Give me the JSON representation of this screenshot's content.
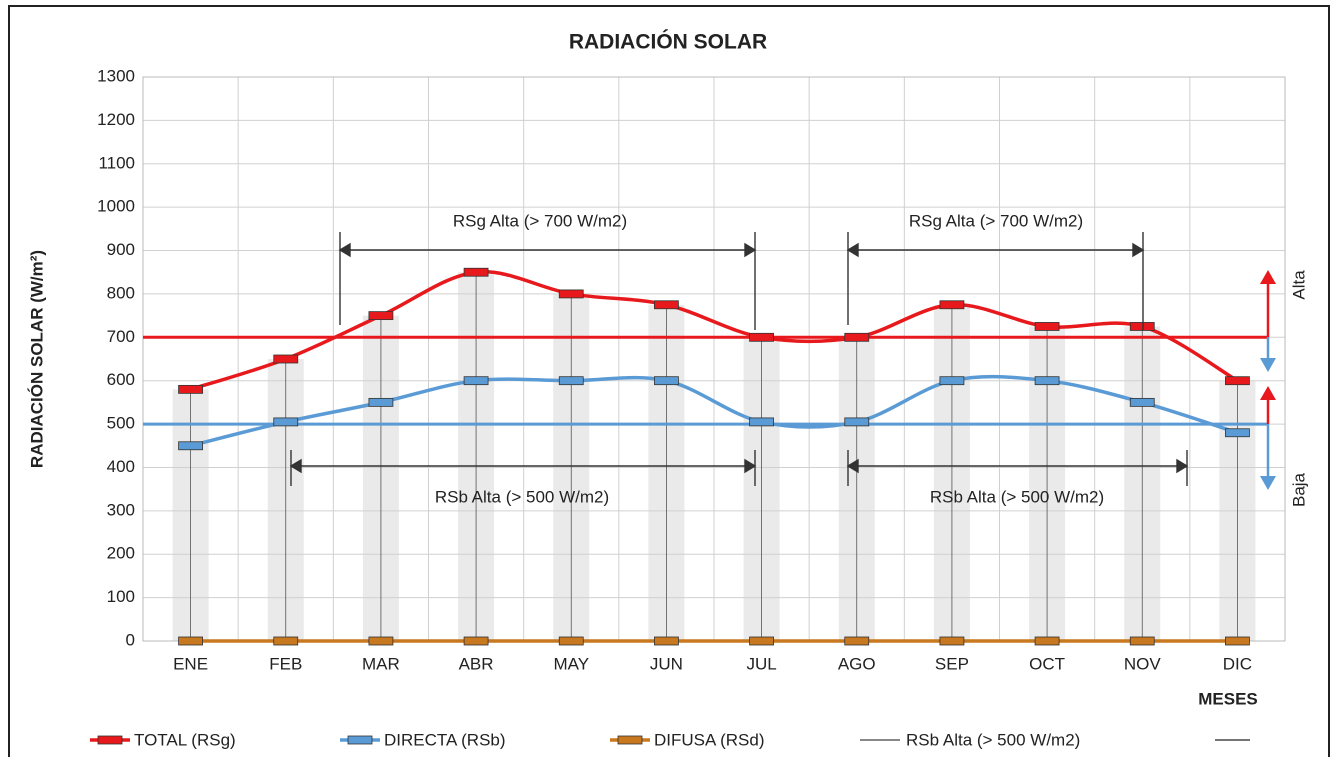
{
  "chart_data": {
    "type": "line",
    "title": "RADIACIÓN SOLAR",
    "y_label": "RADIACIÓN  SOLAR  (W/m²)",
    "x_label": "MESES",
    "categories": [
      "ENE",
      "FEB",
      "MAR",
      "ABR",
      "MAY",
      "JUN",
      "JUL",
      "AGO",
      "SEP",
      "OCT",
      "NOV",
      "DIC"
    ],
    "series": [
      {
        "name": "TOTAL (RSg)",
        "color": "#e8191c",
        "values": [
          580,
          650,
          750,
          850,
          800,
          775,
          700,
          700,
          775,
          725,
          725,
          600
        ]
      },
      {
        "name": "DIRECTA (RSb)",
        "color": "#5b9bd5",
        "values": [
          450,
          505,
          550,
          600,
          600,
          600,
          505,
          505,
          600,
          600,
          550,
          480
        ]
      },
      {
        "name": "DIFUSA (RSd)",
        "color": "#c8781e",
        "values": [
          0,
          0,
          0,
          0,
          0,
          0,
          0,
          0,
          0,
          0,
          0,
          0
        ]
      }
    ],
    "reference_lines": [
      {
        "value": 700,
        "color": "#e8191c"
      },
      {
        "value": 500,
        "color": "#5b9bd5"
      }
    ],
    "annotations": [
      "RSg Alta (> 700 W/m2)",
      "RSg Alta (> 700 W/m2)",
      "RSb Alta (> 500 W/m2)",
      "RSb Alta (> 500 W/m2)",
      "Alta",
      "Baja"
    ],
    "legend_extra": [
      {
        "name": "RSb Alta (> 500 W/m2)",
        "color": "#404040"
      }
    ],
    "ylim": [
      0,
      1300
    ],
    "yticks": [
      0,
      100,
      200,
      300,
      400,
      500,
      600,
      700,
      800,
      900,
      1000,
      1100,
      1200,
      1300
    ],
    "grid": true
  }
}
